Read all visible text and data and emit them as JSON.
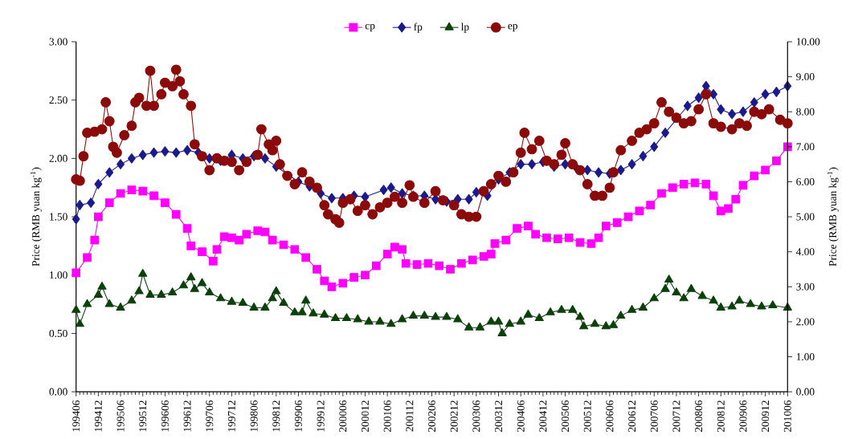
{
  "chart_data": {
    "type": "line",
    "ylabel": "Price (RMB yuan kg$^{-1}$)",
    "y2label": "Price (RMB yuan kg$^{-1}$)",
    "legend": "top",
    "xlim": [
      "1994-06",
      "2010-06"
    ],
    "xticks": [
      {
        "value": "1994-06",
        "label": "199406"
      },
      {
        "value": "1994-12",
        "label": "199412"
      },
      {
        "value": "1995-06",
        "label": "199506"
      },
      {
        "value": "1995-12",
        "label": "199512"
      },
      {
        "value": "1996-06",
        "label": "199606"
      },
      {
        "value": "1996-12",
        "label": "199612"
      },
      {
        "value": "1997-06",
        "label": "199706"
      },
      {
        "value": "1997-12",
        "label": "199712"
      },
      {
        "value": "1998-06",
        "label": "199806"
      },
      {
        "value": "1998-12",
        "label": "199812"
      },
      {
        "value": "1999-06",
        "label": "199906"
      },
      {
        "value": "1999-12",
        "label": "199912"
      },
      {
        "value": "2000-06",
        "label": "200006"
      },
      {
        "value": "2000-12",
        "label": "200012"
      },
      {
        "value": "2001-06",
        "label": "200106"
      },
      {
        "value": "2001-12",
        "label": "200112"
      },
      {
        "value": "2002-06",
        "label": "200206"
      },
      {
        "value": "2002-12",
        "label": "200212"
      },
      {
        "value": "2003-06",
        "label": "200306"
      },
      {
        "value": "2003-12",
        "label": "200312"
      },
      {
        "value": "2004-06",
        "label": "200406"
      },
      {
        "value": "2004-12",
        "label": "200412"
      },
      {
        "value": "2005-06",
        "label": "200506"
      },
      {
        "value": "2005-12",
        "label": "200512"
      },
      {
        "value": "2006-06",
        "label": "200606"
      },
      {
        "value": "2006-12",
        "label": "200612"
      },
      {
        "value": "2007-06",
        "label": "200706"
      },
      {
        "value": "2007-12",
        "label": "200712"
      },
      {
        "value": "2008-06",
        "label": "200806"
      },
      {
        "value": "2008-12",
        "label": "200812"
      },
      {
        "value": "2009-06",
        "label": "200906"
      },
      {
        "value": "2009-12",
        "label": "200912"
      },
      {
        "value": "2010-06",
        "label": "201006"
      }
    ],
    "ylim": [
      0,
      3
    ],
    "yticks": [
      {
        "value": 0,
        "label": "0.00"
      },
      {
        "value": 0.5,
        "label": "0.50"
      },
      {
        "value": 1,
        "label": "1.00"
      },
      {
        "value": 1.5,
        "label": "1.50"
      },
      {
        "value": 2,
        "label": "2.00"
      },
      {
        "value": 2.5,
        "label": "2.50"
      },
      {
        "value": 3,
        "label": "3.00"
      }
    ],
    "y2lim": [
      0,
      10
    ],
    "y2ticks": [
      {
        "value": 0,
        "label": "0.00"
      },
      {
        "value": 1,
        "label": "1.00"
      },
      {
        "value": 2,
        "label": "2.00"
      },
      {
        "value": 3,
        "label": "3.00"
      },
      {
        "value": 4,
        "label": "4.00"
      },
      {
        "value": 5,
        "label": "5.00"
      },
      {
        "value": 6,
        "label": "6.00"
      },
      {
        "value": 7,
        "label": "7.00"
      },
      {
        "value": 8,
        "label": "8.00"
      },
      {
        "value": 9,
        "label": "9.00"
      },
      {
        "value": 10,
        "label": "10.00"
      }
    ],
    "series": [
      {
        "name": "cp",
        "color": "#ff00ff",
        "marker": "square",
        "x": [
          "1994-06",
          "1994-09",
          "1994-11",
          "1994-12",
          "1995-03",
          "1995-06",
          "1995-09",
          "1995-12",
          "1996-03",
          "1996-06",
          "1996-09",
          "1996-12",
          "1997-01",
          "1997-04",
          "1997-07",
          "1997-08",
          "1997-10",
          "1997-12",
          "1998-02",
          "1998-04",
          "1998-07",
          "1998-09",
          "1998-11",
          "1999-02",
          "1999-05",
          "1999-08",
          "1999-11",
          "2000-01",
          "2000-03",
          "2000-06",
          "2000-09",
          "2000-12",
          "2001-03",
          "2001-06",
          "2001-08",
          "2001-10",
          "2001-11",
          "2002-02",
          "2002-05",
          "2002-08",
          "2002-11",
          "2003-02",
          "2003-05",
          "2003-08",
          "2003-10",
          "2003-11",
          "2004-02",
          "2004-05",
          "2004-08",
          "2004-10",
          "2005-01",
          "2005-04",
          "2005-07",
          "2005-10",
          "2006-01",
          "2006-03",
          "2006-05",
          "2006-08",
          "2006-11",
          "2007-02",
          "2007-05",
          "2007-08",
          "2007-11",
          "2008-02",
          "2008-05",
          "2008-08",
          "2008-10",
          "2008-12",
          "2009-02",
          "2009-04",
          "2009-06",
          "2009-09",
          "2009-12",
          "2010-03",
          "2010-06"
        ],
        "values": [
          1.02,
          1.15,
          1.3,
          1.5,
          1.62,
          1.7,
          1.73,
          1.72,
          1.68,
          1.62,
          1.52,
          1.4,
          1.25,
          1.2,
          1.12,
          1.22,
          1.33,
          1.32,
          1.3,
          1.35,
          1.38,
          1.37,
          1.3,
          1.26,
          1.22,
          1.15,
          1.05,
          0.95,
          0.9,
          0.93,
          0.98,
          1.0,
          1.08,
          1.18,
          1.24,
          1.22,
          1.1,
          1.09,
          1.1,
          1.08,
          1.05,
          1.1,
          1.13,
          1.16,
          1.18,
          1.27,
          1.3,
          1.4,
          1.42,
          1.35,
          1.32,
          1.31,
          1.32,
          1.28,
          1.27,
          1.32,
          1.42,
          1.45,
          1.5,
          1.55,
          1.6,
          1.7,
          1.75,
          1.78,
          1.79,
          1.78,
          1.68,
          1.55,
          1.57,
          1.65,
          1.77,
          1.85,
          1.9,
          1.98,
          2.1
        ]
      },
      {
        "name": "fp",
        "color": "#1a1a8c",
        "marker": "diamond",
        "x": [
          "1994-06",
          "1994-07",
          "1994-10",
          "1994-12",
          "1995-03",
          "1995-06",
          "1995-09",
          "1995-12",
          "1996-03",
          "1996-06",
          "1996-09",
          "1996-12",
          "1997-03",
          "1997-06",
          "1997-09",
          "1997-12",
          "1998-03",
          "1998-06",
          "1998-09",
          "1998-12",
          "1999-06",
          "1999-09",
          "1999-12",
          "2000-03",
          "2000-06",
          "2000-09",
          "2000-12",
          "2001-05",
          "2001-07",
          "2001-10",
          "2002-01",
          "2002-04",
          "2002-07",
          "2002-10",
          "2003-01",
          "2003-04",
          "2003-06",
          "2003-09",
          "2003-12",
          "2004-03",
          "2004-06",
          "2004-09",
          "2004-12",
          "2005-03",
          "2005-06",
          "2005-09",
          "2005-12",
          "2006-03",
          "2006-06",
          "2006-09",
          "2006-12",
          "2007-03",
          "2007-06",
          "2007-09",
          "2008-03",
          "2008-06",
          "2008-08",
          "2008-10",
          "2008-12",
          "2009-03",
          "2009-06",
          "2009-09",
          "2009-12",
          "2010-03",
          "2010-06"
        ],
        "values": [
          1.48,
          1.6,
          1.62,
          1.78,
          1.88,
          1.95,
          2.0,
          2.03,
          2.05,
          2.06,
          2.05,
          2.07,
          2.05,
          2.0,
          1.98,
          2.03,
          2.0,
          2.02,
          2.0,
          1.93,
          1.8,
          1.76,
          1.7,
          1.66,
          1.66,
          1.68,
          1.67,
          1.73,
          1.75,
          1.7,
          1.68,
          1.68,
          1.65,
          1.63,
          1.65,
          1.65,
          1.71,
          1.68,
          1.82,
          1.88,
          1.95,
          1.95,
          1.97,
          1.93,
          1.95,
          1.92,
          1.9,
          1.88,
          1.87,
          1.9,
          1.95,
          2.02,
          2.1,
          2.22,
          2.45,
          2.52,
          2.62,
          2.55,
          2.42,
          2.38,
          2.4,
          2.48,
          2.55,
          2.57,
          2.62
        ]
      },
      {
        "name": "lp",
        "color": "#0b400b",
        "marker": "triangle",
        "x": [
          "1994-06",
          "1994-07",
          "1994-09",
          "1994-12",
          "1995-01",
          "1995-03",
          "1995-06",
          "1995-09",
          "1995-11",
          "1995-12",
          "1996-02",
          "1996-05",
          "1996-08",
          "1996-11",
          "1997-01",
          "1997-02",
          "1997-04",
          "1997-06",
          "1997-09",
          "1997-12",
          "1998-03",
          "1998-06",
          "1998-09",
          "1998-11",
          "1998-12",
          "1999-02",
          "1999-05",
          "1999-07",
          "1999-08",
          "1999-10",
          "2000-01",
          "2000-04",
          "2000-07",
          "2000-10",
          "2001-01",
          "2001-04",
          "2001-07",
          "2001-10",
          "2002-01",
          "2002-04",
          "2002-07",
          "2002-10",
          "2003-01",
          "2003-04",
          "2003-07",
          "2003-10",
          "2003-12",
          "2004-01",
          "2004-03",
          "2004-06",
          "2004-08",
          "2004-11",
          "2005-02",
          "2005-05",
          "2005-08",
          "2005-10",
          "2005-11",
          "2006-02",
          "2006-05",
          "2006-07",
          "2006-09",
          "2006-12",
          "2007-03",
          "2007-06",
          "2007-09",
          "2007-10",
          "2007-12",
          "2008-02",
          "2008-04",
          "2008-07",
          "2008-10",
          "2008-12",
          "2009-03",
          "2009-05",
          "2009-08",
          "2009-11",
          "2010-02",
          "2010-06"
        ],
        "values": [
          0.7,
          0.58,
          0.75,
          0.83,
          0.9,
          0.75,
          0.72,
          0.78,
          0.86,
          1.01,
          0.83,
          0.83,
          0.85,
          0.91,
          0.98,
          0.88,
          0.93,
          0.85,
          0.8,
          0.77,
          0.76,
          0.72,
          0.72,
          0.8,
          0.86,
          0.76,
          0.68,
          0.68,
          0.78,
          0.67,
          0.66,
          0.63,
          0.63,
          0.62,
          0.6,
          0.6,
          0.58,
          0.62,
          0.65,
          0.65,
          0.64,
          0.64,
          0.62,
          0.55,
          0.55,
          0.6,
          0.6,
          0.5,
          0.58,
          0.6,
          0.66,
          0.63,
          0.68,
          0.7,
          0.7,
          0.64,
          0.56,
          0.58,
          0.56,
          0.57,
          0.65,
          0.7,
          0.72,
          0.8,
          0.88,
          0.96,
          0.85,
          0.8,
          0.88,
          0.82,
          0.78,
          0.72,
          0.73,
          0.78,
          0.75,
          0.73,
          0.74,
          0.72
        ]
      },
      {
        "name": "ep",
        "color": "#8b0a0a",
        "marker": "circle",
        "axis": "y2",
        "x": [
          "1994-06",
          "1994-07",
          "1994-08",
          "1994-09",
          "1994-11",
          "1995-01",
          "1995-02",
          "1995-03",
          "1995-04",
          "1995-05",
          "1995-07",
          "1995-09",
          "1995-10",
          "1995-11",
          "1996-01",
          "1996-02",
          "1996-03",
          "1996-05",
          "1996-06",
          "1996-08",
          "1996-09",
          "1996-10",
          "1996-11",
          "1997-01",
          "1997-02",
          "1997-04",
          "1997-06",
          "1997-08",
          "1997-10",
          "1997-12",
          "1998-02",
          "1998-04",
          "1998-07",
          "1998-08",
          "1998-10",
          "1998-11",
          "1998-12",
          "1999-01",
          "1999-03",
          "1999-05",
          "1999-07",
          "1999-09",
          "1999-11",
          "2000-01",
          "2000-02",
          "2000-04",
          "2000-05",
          "2000-06",
          "2000-08",
          "2000-10",
          "2000-12",
          "2001-02",
          "2001-04",
          "2001-06",
          "2001-08",
          "2001-10",
          "2001-12",
          "2002-01",
          "2002-04",
          "2002-07",
          "2002-09",
          "2002-12",
          "2003-02",
          "2003-04",
          "2003-06",
          "2003-08",
          "2003-10",
          "2003-12",
          "2004-02",
          "2004-04",
          "2004-06",
          "2004-07",
          "2004-09",
          "2004-11",
          "2005-01",
          "2005-03",
          "2005-05",
          "2005-06",
          "2005-08",
          "2005-10",
          "2005-12",
          "2006-02",
          "2006-04",
          "2006-06",
          "2006-07",
          "2006-09",
          "2006-12",
          "2007-02",
          "2007-04",
          "2007-06",
          "2007-08",
          "2007-10",
          "2007-12",
          "2008-02",
          "2008-04",
          "2008-06",
          "2008-08",
          "2008-10",
          "2008-12",
          "2009-03",
          "2009-05",
          "2009-07",
          "2009-09",
          "2009-11",
          "2010-01",
          "2010-04",
          "2010-06"
        ],
        "values": [
          6.07,
          6.03,
          6.73,
          7.4,
          7.43,
          7.5,
          8.27,
          7.73,
          7.0,
          6.83,
          7.33,
          7.6,
          8.27,
          8.4,
          8.17,
          9.17,
          8.17,
          8.5,
          8.83,
          8.73,
          9.2,
          8.87,
          8.5,
          8.17,
          7.07,
          6.73,
          6.33,
          6.67,
          6.6,
          6.57,
          6.33,
          6.57,
          6.77,
          7.5,
          7.07,
          6.9,
          7.17,
          6.5,
          6.17,
          5.93,
          6.27,
          6.0,
          5.83,
          5.33,
          5.07,
          4.93,
          4.83,
          5.4,
          5.5,
          5.17,
          5.33,
          5.07,
          5.27,
          5.4,
          5.57,
          5.4,
          5.9,
          5.57,
          5.4,
          5.73,
          5.47,
          5.33,
          5.07,
          5.0,
          5.0,
          5.73,
          5.93,
          6.17,
          6.0,
          6.27,
          6.83,
          7.4,
          6.93,
          7.17,
          6.6,
          6.5,
          6.77,
          7.1,
          6.5,
          6.33,
          5.93,
          5.6,
          5.6,
          5.83,
          6.27,
          6.9,
          7.17,
          7.4,
          7.5,
          7.67,
          8.27,
          8.0,
          7.83,
          7.67,
          7.73,
          8.07,
          8.5,
          7.67,
          7.57,
          7.5,
          7.67,
          7.6,
          8.0,
          7.93,
          8.07,
          7.77,
          7.67
        ]
      }
    ]
  }
}
